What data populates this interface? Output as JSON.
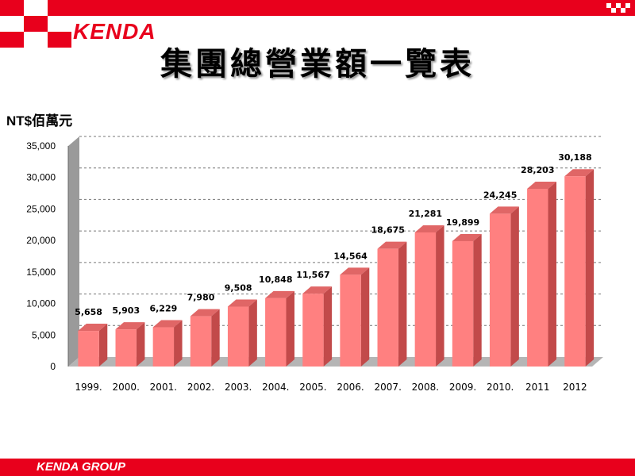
{
  "brand": {
    "logo_text": "KENDA",
    "footer_text": "KENDA GROUP",
    "accent_color": "#e8001c"
  },
  "slide": {
    "title": "集團總營業額一覽表",
    "unit_label": "NT$佰萬元"
  },
  "chart_data": {
    "type": "bar",
    "title": "集團總營業額一覽表",
    "ylabel": "NT$佰萬元",
    "xlabel": "",
    "categories": [
      "1999.",
      "2000.",
      "2001.",
      "2002.",
      "2003.",
      "2004.",
      "2005.",
      "2006.",
      "2007.",
      "2008.",
      "2009.",
      "2010.",
      "2011",
      "2012"
    ],
    "values": [
      5658,
      5903,
      6229,
      7980,
      9508,
      10848,
      11567,
      14564,
      18675,
      21281,
      19899,
      24245,
      28203,
      30188
    ],
    "value_labels": [
      "5,658",
      "5,903",
      "6,229",
      "7,980",
      "9,508",
      "10,848",
      "11,567",
      "14,564",
      "18,675",
      "21,281",
      "19,899",
      "24,245",
      "28,203",
      "30,188"
    ],
    "ylim": [
      0,
      35000
    ],
    "yticks": [
      0,
      5000,
      10000,
      15000,
      20000,
      25000,
      30000,
      35000
    ],
    "ytick_labels": [
      "0",
      "5,000",
      "10,000",
      "15,000",
      "20,000",
      "25,000",
      "30,000",
      "35,000"
    ],
    "grid": true,
    "bar_color": "#ff8080",
    "legend": "none"
  }
}
